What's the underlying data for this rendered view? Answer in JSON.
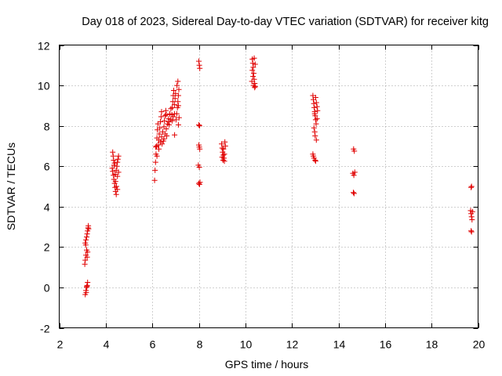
{
  "chart_data": {
    "type": "scatter",
    "title": "Day 018 of 2023, Sidereal Day-to-day VTEC variation (SDTVAR) for receiver kitg",
    "xlabel": "GPS time / hours",
    "ylabel": "SDTVAR / TECUs",
    "xlim": [
      2,
      20
    ],
    "ylim": [
      -2,
      12
    ],
    "xticks": [
      2,
      4,
      6,
      8,
      10,
      12,
      14,
      16,
      18,
      20
    ],
    "yticks": [
      -2,
      0,
      2,
      4,
      6,
      8,
      10,
      12
    ],
    "grid": true,
    "marker": "+",
    "color": "#e00000",
    "series": [
      {
        "name": "SDTVAR",
        "points": [
          [
            3.1,
            1.15
          ],
          [
            3.12,
            1.35
          ],
          [
            3.15,
            1.6
          ],
          [
            3.18,
            1.85
          ],
          [
            3.2,
            1.5
          ],
          [
            3.22,
            1.75
          ],
          [
            3.12,
            2.2
          ],
          [
            3.15,
            2.35
          ],
          [
            3.18,
            2.5
          ],
          [
            3.2,
            2.65
          ],
          [
            3.22,
            2.8
          ],
          [
            3.24,
            2.95
          ],
          [
            3.25,
            3.05
          ],
          [
            3.14,
            2.1
          ],
          [
            3.26,
            2.9
          ],
          [
            3.12,
            -0.35
          ],
          [
            3.15,
            -0.15
          ],
          [
            3.18,
            0.0
          ],
          [
            3.2,
            0.1
          ],
          [
            3.22,
            0.25
          ],
          [
            3.16,
            -0.25
          ],
          [
            3.19,
            0.05
          ],
          [
            4.3,
            6.7
          ],
          [
            4.32,
            6.5
          ],
          [
            4.34,
            6.3
          ],
          [
            4.36,
            6.05
          ],
          [
            4.3,
            5.75
          ],
          [
            4.33,
            5.55
          ],
          [
            4.35,
            5.35
          ],
          [
            4.38,
            5.15
          ],
          [
            4.4,
            4.95
          ],
          [
            4.42,
            4.75
          ],
          [
            4.45,
            4.6
          ],
          [
            4.4,
            5.6
          ],
          [
            4.45,
            5.8
          ],
          [
            4.48,
            6.0
          ],
          [
            4.5,
            6.2
          ],
          [
            4.52,
            6.35
          ],
          [
            4.55,
            6.5
          ],
          [
            4.42,
            5.25
          ],
          [
            4.5,
            5.5
          ],
          [
            4.55,
            5.7
          ],
          [
            4.46,
            5.0
          ],
          [
            4.5,
            4.85
          ],
          [
            4.38,
            6.15
          ],
          [
            4.28,
            5.9
          ],
          [
            6.1,
            5.3
          ],
          [
            6.12,
            5.8
          ],
          [
            6.14,
            6.2
          ],
          [
            6.16,
            6.6
          ],
          [
            6.18,
            7.0
          ],
          [
            6.2,
            7.4
          ],
          [
            6.22,
            7.8
          ],
          [
            6.24,
            8.1
          ],
          [
            6.15,
            6.95
          ],
          [
            6.2,
            6.5
          ],
          [
            6.25,
            7.05
          ],
          [
            6.28,
            7.3
          ],
          [
            6.3,
            7.6
          ],
          [
            6.32,
            7.9
          ],
          [
            6.35,
            8.2
          ],
          [
            6.38,
            8.45
          ],
          [
            6.4,
            8.7
          ],
          [
            6.35,
            7.2
          ],
          [
            6.4,
            7.45
          ],
          [
            6.45,
            7.7
          ],
          [
            6.5,
            7.95
          ],
          [
            6.52,
            8.25
          ],
          [
            6.55,
            8.5
          ],
          [
            6.58,
            8.75
          ],
          [
            6.6,
            8.55
          ],
          [
            6.5,
            7.35
          ],
          [
            6.55,
            7.6
          ],
          [
            6.6,
            7.85
          ],
          [
            6.65,
            8.1
          ],
          [
            6.7,
            8.35
          ],
          [
            6.75,
            8.6
          ],
          [
            6.8,
            8.85
          ],
          [
            6.72,
            8.05
          ],
          [
            6.78,
            8.3
          ],
          [
            6.84,
            8.55
          ],
          [
            6.86,
            8.9
          ],
          [
            6.88,
            9.2
          ],
          [
            6.9,
            9.5
          ],
          [
            6.92,
            9.75
          ],
          [
            6.85,
            8.25
          ],
          [
            6.9,
            8.45
          ],
          [
            6.95,
            8.6
          ],
          [
            6.95,
            9.05
          ],
          [
            6.98,
            9.35
          ],
          [
            7.0,
            9.6
          ],
          [
            6.96,
            7.55
          ],
          [
            7.02,
            8.3
          ],
          [
            7.05,
            8.6
          ],
          [
            7.08,
            8.9
          ],
          [
            7.1,
            9.2
          ],
          [
            7.12,
            9.5
          ],
          [
            7.14,
            9.8
          ],
          [
            7.06,
            10.0
          ],
          [
            7.1,
            10.2
          ],
          [
            7.12,
            9.0
          ],
          [
            7.15,
            8.4
          ],
          [
            7.12,
            8.05
          ],
          [
            6.42,
            7.1
          ],
          [
            6.48,
            7.25
          ],
          [
            6.62,
            7.5
          ],
          [
            6.28,
            6.85
          ],
          [
            6.7,
            8.2
          ],
          [
            8.0,
            11.2
          ],
          [
            8.02,
            11.0
          ],
          [
            8.04,
            10.85
          ],
          [
            8.0,
            8.05
          ],
          [
            8.03,
            8.0
          ],
          [
            8.0,
            7.05
          ],
          [
            8.02,
            6.95
          ],
          [
            8.04,
            6.85
          ],
          [
            7.98,
            6.05
          ],
          [
            8.02,
            5.95
          ],
          [
            8.0,
            5.15
          ],
          [
            8.03,
            5.1
          ],
          [
            8.05,
            5.2
          ],
          [
            8.98,
            7.1
          ],
          [
            9.0,
            6.9
          ],
          [
            9.02,
            6.7
          ],
          [
            9.05,
            6.55
          ],
          [
            9.08,
            6.4
          ],
          [
            9.1,
            6.25
          ],
          [
            9.12,
            7.2
          ],
          [
            9.14,
            7.0
          ],
          [
            9.0,
            6.45
          ],
          [
            9.06,
            6.85
          ],
          [
            9.1,
            6.6
          ],
          [
            9.04,
            6.3
          ],
          [
            10.3,
            11.3
          ],
          [
            10.32,
            11.1
          ],
          [
            10.34,
            10.9
          ],
          [
            10.36,
            10.6
          ],
          [
            10.38,
            10.3
          ],
          [
            10.4,
            10.1
          ],
          [
            10.42,
            9.95
          ],
          [
            10.33,
            10.45
          ],
          [
            10.35,
            10.0
          ],
          [
            10.4,
            9.9
          ],
          [
            10.38,
            11.35
          ],
          [
            10.42,
            11.05
          ],
          [
            10.3,
            10.75
          ],
          [
            10.28,
            10.2
          ],
          [
            12.9,
            9.5
          ],
          [
            12.92,
            9.3
          ],
          [
            12.94,
            9.1
          ],
          [
            12.96,
            8.9
          ],
          [
            12.98,
            8.7
          ],
          [
            13.0,
            8.5
          ],
          [
            13.02,
            8.3
          ],
          [
            13.04,
            8.1
          ],
          [
            12.95,
            7.9
          ],
          [
            12.98,
            7.7
          ],
          [
            13.0,
            7.5
          ],
          [
            13.02,
            9.4
          ],
          [
            13.05,
            9.15
          ],
          [
            13.08,
            8.95
          ],
          [
            13.1,
            8.75
          ],
          [
            12.92,
            6.5
          ],
          [
            12.95,
            6.4
          ],
          [
            13.0,
            6.3
          ],
          [
            13.02,
            6.25
          ],
          [
            12.9,
            6.6
          ],
          [
            13.05,
            7.3
          ],
          [
            12.98,
            8.6
          ],
          [
            13.08,
            8.35
          ],
          [
            14.65,
            6.85
          ],
          [
            14.68,
            6.75
          ],
          [
            14.62,
            5.65
          ],
          [
            14.66,
            5.55
          ],
          [
            14.7,
            5.7
          ],
          [
            14.64,
            4.7
          ],
          [
            14.67,
            4.65
          ],
          [
            19.7,
            4.95
          ],
          [
            19.72,
            5.0
          ],
          [
            19.68,
            3.8
          ],
          [
            19.7,
            3.65
          ],
          [
            19.72,
            3.5
          ],
          [
            19.74,
            3.35
          ],
          [
            19.76,
            3.75
          ],
          [
            19.7,
            2.8
          ],
          [
            19.72,
            2.75
          ]
        ]
      }
    ]
  }
}
